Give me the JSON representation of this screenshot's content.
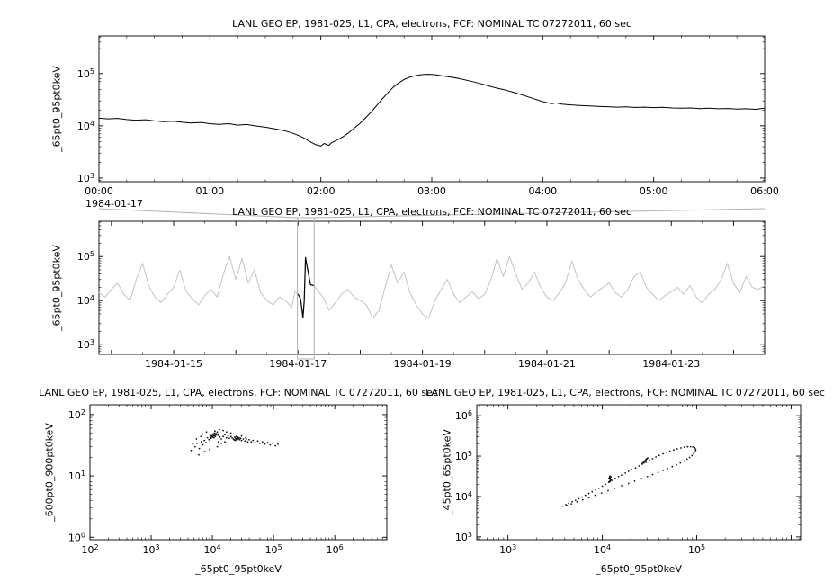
{
  "chart_data": [
    {
      "id": "zoom",
      "type": "line",
      "title": "LANL GEO EP, 1981-025, L1, CPA, electrons, FCF: NOMINAL TC 07272011, 60 sec",
      "ylabel": "_65pt0_95pt0keV",
      "xlabel": "",
      "x_date_label": "1984-01-17",
      "x_ticks": [
        {
          "v": 0,
          "label": "00:00"
        },
        {
          "v": 1,
          "label": "01:00"
        },
        {
          "v": 2,
          "label": "02:00"
        },
        {
          "v": 3,
          "label": "03:00"
        },
        {
          "v": 4,
          "label": "04:00"
        },
        {
          "v": 5,
          "label": "05:00"
        },
        {
          "v": 6,
          "label": "06:00"
        }
      ],
      "y_ticks": [
        "10^3",
        "10^4",
        "10^5"
      ],
      "xlim": [
        0,
        6
      ],
      "ylim_log": [
        2.93,
        5.72
      ],
      "line_color": "#000000",
      "x": [
        0,
        0.08,
        0.17,
        0.25,
        0.33,
        0.42,
        0.5,
        0.58,
        0.67,
        0.75,
        0.83,
        0.92,
        1.0,
        1.08,
        1.17,
        1.25,
        1.33,
        1.42,
        1.5,
        1.58,
        1.67,
        1.75,
        1.8,
        1.85,
        1.9,
        1.95,
        2.0,
        2.03,
        2.07,
        2.1,
        2.15,
        2.2,
        2.25,
        2.3,
        2.35,
        2.4,
        2.45,
        2.5,
        2.55,
        2.6,
        2.65,
        2.7,
        2.75,
        2.8,
        2.85,
        2.9,
        2.95,
        3.0,
        3.05,
        3.1,
        3.17,
        3.25,
        3.33,
        3.42,
        3.5,
        3.58,
        3.67,
        3.75,
        3.83,
        3.92,
        4.0,
        4.08,
        4.12,
        4.17,
        4.25,
        4.33,
        4.42,
        4.5,
        4.58,
        4.67,
        4.75,
        4.83,
        4.92,
        5.0,
        5.08,
        5.17,
        5.25,
        5.33,
        5.42,
        5.5,
        5.58,
        5.67,
        5.75,
        5.83,
        5.92,
        6.0
      ],
      "y": [
        14000,
        13600,
        13900,
        13200,
        12800,
        13100,
        12400,
        12000,
        12300,
        11700,
        11300,
        11600,
        11000,
        10700,
        11000,
        10300,
        10600,
        9900,
        9400,
        8800,
        8100,
        7200,
        6500,
        5800,
        5000,
        4400,
        4100,
        4600,
        4200,
        4800,
        5400,
        6200,
        7300,
        9000,
        11000,
        14000,
        18000,
        24000,
        32000,
        42000,
        54000,
        66000,
        77000,
        85000,
        91000,
        95000,
        97000,
        96000,
        94000,
        90000,
        86000,
        80000,
        73000,
        66000,
        59000,
        53000,
        48000,
        43000,
        38000,
        33000,
        29000,
        26500,
        27500,
        26000,
        25200,
        24600,
        24000,
        23500,
        23200,
        22800,
        23100,
        22500,
        22800,
        22300,
        22600,
        22000,
        21700,
        22000,
        21400,
        21700,
        21200,
        21500,
        20900,
        21200,
        20700,
        21800
      ]
    },
    {
      "id": "context",
      "type": "line",
      "title": "LANL GEO EP, 1981-025, L1, CPA, electrons, FCF: NOMINAL TC 07272011, 60 sec",
      "ylabel": "_65pt0_95pt0keV",
      "xlabel": "",
      "x_ticks": [
        {
          "v": 15,
          "label": "1984-01-15"
        },
        {
          "v": 17,
          "label": "1984-01-17"
        },
        {
          "v": 19,
          "label": "1984-01-19"
        },
        {
          "v": 21,
          "label": "1984-01-21"
        },
        {
          "v": 23,
          "label": "1984-01-23"
        }
      ],
      "y_ticks": [
        "10^3",
        "10^4",
        "10^5"
      ],
      "xlim": [
        13.8,
        24.5
      ],
      "ylim_log": [
        2.78,
        5.8
      ],
      "line_color": "#c3c3c3",
      "highlight_color": "#000000",
      "box_color": "#b0b0b0",
      "highlight_range": [
        16.99,
        17.26
      ],
      "x": [
        13.8,
        13.9,
        14.0,
        14.1,
        14.2,
        14.3,
        14.4,
        14.5,
        14.6,
        14.7,
        14.8,
        14.9,
        15.0,
        15.1,
        15.2,
        15.3,
        15.4,
        15.5,
        15.6,
        15.7,
        15.8,
        15.9,
        16.0,
        16.1,
        16.2,
        16.3,
        16.4,
        16.5,
        16.6,
        16.7,
        16.8,
        16.9,
        16.95,
        17.0,
        17.04,
        17.08,
        17.1,
        17.12,
        17.15,
        17.2,
        17.25,
        17.3,
        17.4,
        17.5,
        17.6,
        17.7,
        17.8,
        17.9,
        18.0,
        18.1,
        18.2,
        18.3,
        18.4,
        18.5,
        18.6,
        18.7,
        18.8,
        18.9,
        19.0,
        19.1,
        19.2,
        19.3,
        19.4,
        19.5,
        19.6,
        19.7,
        19.8,
        19.9,
        20.0,
        20.1,
        20.2,
        20.3,
        20.4,
        20.5,
        20.6,
        20.7,
        20.8,
        20.9,
        21.0,
        21.1,
        21.2,
        21.3,
        21.4,
        21.5,
        21.6,
        21.7,
        21.8,
        21.9,
        22.0,
        22.1,
        22.2,
        22.3,
        22.4,
        22.5,
        22.6,
        22.7,
        22.8,
        22.9,
        23.0,
        23.1,
        23.2,
        23.3,
        23.4,
        23.5,
        23.6,
        23.7,
        23.8,
        23.9,
        24.0,
        24.1,
        24.2,
        24.3,
        24.4,
        24.5
      ],
      "y": [
        15000,
        12000,
        18000,
        25000,
        14000,
        10000,
        30000,
        70000,
        22000,
        12000,
        9000,
        14000,
        20000,
        50000,
        16000,
        11000,
        8000,
        13000,
        18000,
        12000,
        40000,
        100000,
        30000,
        90000,
        25000,
        50000,
        15000,
        10000,
        8000,
        12000,
        10000,
        7000,
        16000,
        14000,
        11000,
        4100,
        10000,
        95000,
        55000,
        23000,
        22000,
        18000,
        12000,
        6000,
        9000,
        14000,
        18000,
        12000,
        10000,
        8000,
        4000,
        6000,
        20000,
        65000,
        25000,
        45000,
        15000,
        8000,
        5000,
        4000,
        10000,
        18000,
        30000,
        14000,
        9000,
        12000,
        16000,
        11000,
        14000,
        30000,
        90000,
        35000,
        100000,
        40000,
        18000,
        25000,
        45000,
        20000,
        12000,
        10000,
        15000,
        25000,
        80000,
        30000,
        18000,
        12000,
        16000,
        20000,
        25000,
        15000,
        12000,
        18000,
        35000,
        45000,
        20000,
        14000,
        10000,
        13000,
        16000,
        20000,
        14000,
        22000,
        12000,
        9000,
        14000,
        18000,
        30000,
        70000,
        25000,
        15000,
        35000,
        20000,
        18000,
        22000
      ]
    },
    {
      "id": "scatter_600_900",
      "type": "scatter",
      "title": "LANL GEO EP, 1981-025, L1, CPA, electrons, FCF: NOMINAL TC 07272011, 60 sec",
      "ylabel": "_600pt0_900pt0keV",
      "xlabel": "_65pt0_95pt0keV",
      "x_ticks": [
        "10^2",
        "10^3",
        "10^4",
        "10^5",
        "10^6"
      ],
      "y_ticks": [
        "10^0",
        "10^1",
        "10^2"
      ],
      "xlim_log": [
        2,
        6.85
      ],
      "ylim_log": [
        -0.04,
        2.16
      ],
      "point_color": "#111111",
      "points": [
        [
          5200,
          30
        ],
        [
          5600,
          34
        ],
        [
          6100,
          28
        ],
        [
          6600,
          36
        ],
        [
          7000,
          32
        ],
        [
          7400,
          38
        ],
        [
          7900,
          35
        ],
        [
          8300,
          42
        ],
        [
          8800,
          39
        ],
        [
          9200,
          46
        ],
        [
          9600,
          43
        ],
        [
          10000,
          48
        ],
        [
          10400,
          45
        ],
        [
          10800,
          50
        ],
        [
          11200,
          44
        ],
        [
          11600,
          47
        ],
        [
          12000,
          52
        ],
        [
          12400,
          46
        ],
        [
          12800,
          49
        ],
        [
          13300,
          43
        ],
        [
          9500,
          41
        ],
        [
          9900,
          44
        ],
        [
          10200,
          47
        ],
        [
          10600,
          42
        ],
        [
          11000,
          46
        ],
        [
          11400,
          49
        ],
        [
          9700,
          45
        ],
        [
          10100,
          43
        ],
        [
          10500,
          48
        ],
        [
          10900,
          45
        ],
        [
          14000,
          40
        ],
        [
          15000,
          44
        ],
        [
          16000,
          47
        ],
        [
          17000,
          42
        ],
        [
          18000,
          45
        ],
        [
          19000,
          41
        ],
        [
          20000,
          44
        ],
        [
          21000,
          42
        ],
        [
          22000,
          40
        ],
        [
          23000,
          43
        ],
        [
          24000,
          41
        ],
        [
          25000,
          39
        ],
        [
          26000,
          42
        ],
        [
          24500,
          44
        ],
        [
          25500,
          41
        ],
        [
          23500,
          38
        ],
        [
          26500,
          40
        ],
        [
          27500,
          42
        ],
        [
          24200,
          40
        ],
        [
          25800,
          43
        ],
        [
          22500,
          39
        ],
        [
          23800,
          41
        ],
        [
          25200,
          38
        ],
        [
          26800,
          41
        ],
        [
          28000,
          39
        ],
        [
          29000,
          41
        ],
        [
          30000,
          38
        ],
        [
          32000,
          40
        ],
        [
          34000,
          37
        ],
        [
          36000,
          40
        ],
        [
          38000,
          36
        ],
        [
          40000,
          39
        ],
        [
          43000,
          36
        ],
        [
          46000,
          38
        ],
        [
          50000,
          35
        ],
        [
          55000,
          37
        ],
        [
          60000,
          34
        ],
        [
          66000,
          36
        ],
        [
          72000,
          33
        ],
        [
          80000,
          35
        ],
        [
          88000,
          32
        ],
        [
          97000,
          34
        ],
        [
          107000,
          31
        ],
        [
          118000,
          33
        ],
        [
          6000,
          22
        ],
        [
          7500,
          25
        ],
        [
          9000,
          27
        ],
        [
          12000,
          30
        ],
        [
          15000,
          55
        ],
        [
          13000,
          57
        ],
        [
          11000,
          54
        ],
        [
          17000,
          52
        ],
        [
          8000,
          52
        ],
        [
          7000,
          48
        ],
        [
          5500,
          40
        ],
        [
          6500,
          44
        ],
        [
          4800,
          33
        ],
        [
          4500,
          26
        ],
        [
          20000,
          50
        ],
        [
          30000,
          45
        ],
        [
          35000,
          42
        ],
        [
          16000,
          36
        ],
        [
          14000,
          34
        ],
        [
          12500,
          36
        ]
      ]
    },
    {
      "id": "scatter_45_65",
      "type": "scatter",
      "title": "LANL GEO EP, 1981-025, L1, CPA, electrons, FCF: NOMINAL TC 07272011, 60 sec",
      "ylabel": "_45pt0_65pt0keV",
      "xlabel": "_65pt0_95pt0keV",
      "x_ticks": [
        "10^3",
        "10^4",
        "10^5"
      ],
      "y_ticks": [
        "10^3",
        "10^4",
        "10^5",
        "10^6"
      ],
      "xlim_log": [
        2.67,
        6.1
      ],
      "ylim_log": [
        2.93,
        6.27
      ],
      "point_color": "#111111",
      "points": [
        [
          3800,
          5800
        ],
        [
          4100,
          6300
        ],
        [
          4400,
          6800
        ],
        [
          4800,
          7400
        ],
        [
          5200,
          8100
        ],
        [
          5600,
          8800
        ],
        [
          6100,
          9700
        ],
        [
          6600,
          10700
        ],
        [
          7200,
          11800
        ],
        [
          7800,
          13000
        ],
        [
          8500,
          14500
        ],
        [
          9200,
          16000
        ],
        [
          10000,
          18000
        ],
        [
          10800,
          20000
        ],
        [
          11700,
          22500
        ],
        [
          12600,
          25000
        ],
        [
          13700,
          28000
        ],
        [
          14800,
          31000
        ],
        [
          16000,
          34000
        ],
        [
          17500,
          38000
        ],
        [
          19000,
          42000
        ],
        [
          20500,
          46000
        ],
        [
          22500,
          51000
        ],
        [
          24500,
          57000
        ],
        [
          26500,
          63000
        ],
        [
          29000,
          70000
        ],
        [
          31500,
          78000
        ],
        [
          34000,
          86000
        ],
        [
          37000,
          95000
        ],
        [
          40000,
          104000
        ],
        [
          44000,
          114000
        ],
        [
          48000,
          124000
        ],
        [
          52000,
          133000
        ],
        [
          57000,
          142000
        ],
        [
          62000,
          151000
        ],
        [
          68000,
          159000
        ],
        [
          74000,
          166000
        ],
        [
          80000,
          170000
        ],
        [
          86000,
          171000
        ],
        [
          91000,
          168000
        ],
        [
          95000,
          161000
        ],
        [
          97000,
          150000
        ],
        [
          97500,
          138000
        ],
        [
          96000,
          126000
        ],
        [
          93000,
          114000
        ],
        [
          89000,
          103000
        ],
        [
          84000,
          93000
        ],
        [
          79000,
          84000
        ],
        [
          73000,
          76000
        ],
        [
          67000,
          68000
        ],
        [
          61000,
          61000
        ],
        [
          55000,
          55000
        ],
        [
          49000,
          49000
        ],
        [
          44000,
          44000
        ],
        [
          39000,
          39500
        ],
        [
          34000,
          35000
        ],
        [
          30000,
          31000
        ],
        [
          26000,
          27500
        ],
        [
          22000,
          24000
        ],
        [
          19000,
          21000
        ],
        [
          16000,
          18500
        ],
        [
          13500,
          16000
        ],
        [
          11500,
          14000
        ],
        [
          9800,
          12200
        ],
        [
          8400,
          10700
        ],
        [
          7200,
          9400
        ],
        [
          6200,
          8300
        ],
        [
          5400,
          7400
        ],
        [
          4700,
          6600
        ],
        [
          4200,
          6000
        ],
        [
          11800,
          23000
        ],
        [
          12000,
          24500
        ],
        [
          12200,
          26000
        ],
        [
          11900,
          27500
        ],
        [
          12100,
          29000
        ],
        [
          12300,
          30500
        ],
        [
          12000,
          32000
        ],
        [
          11800,
          28500
        ],
        [
          12400,
          25500
        ],
        [
          12100,
          23500
        ],
        [
          12250,
          31000
        ],
        [
          11950,
          29800
        ],
        [
          26500,
          66000
        ],
        [
          27200,
          70000
        ],
        [
          27800,
          74000
        ],
        [
          28400,
          78000
        ],
        [
          29000,
          82000
        ],
        [
          29600,
          86000
        ],
        [
          30200,
          90000
        ],
        [
          28000,
          72000
        ],
        [
          28800,
          80000
        ],
        [
          29400,
          84000
        ],
        [
          27500,
          68000
        ],
        [
          30000,
          88000
        ]
      ]
    }
  ]
}
